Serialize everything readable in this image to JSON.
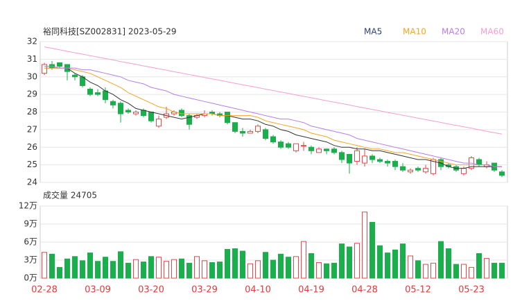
{
  "chart_data": [
    {
      "type": "candlestick",
      "title": "裕同科技[SZ002831] 2023-05-29",
      "up_color": "#e8474a",
      "down_color": "#1aaf4c",
      "ylim": [
        24,
        32
      ],
      "yticks": [
        24,
        25,
        26,
        27,
        28,
        29,
        30,
        31,
        32
      ],
      "grid": true,
      "open": [
        30.2,
        30.7,
        30.8,
        30.7,
        30.1,
        30.0,
        29.3,
        29.1,
        29.2,
        28.6,
        28.5,
        28.1,
        27.9,
        28.1,
        28.0,
        27.2,
        27.7,
        27.9,
        28.1,
        27.8,
        27.7,
        27.8,
        28.0,
        27.9,
        28.0,
        27.4,
        26.9,
        26.8,
        26.9,
        27.0,
        26.6,
        26.3,
        26.2,
        25.8,
        26.1,
        26.0,
        25.7,
        25.9,
        25.9,
        25.7,
        25.6,
        25.2,
        25.1,
        25.5,
        25.3,
        25.2,
        25.2,
        24.9,
        24.6,
        24.8,
        24.6,
        24.5,
        25.3,
        25.0,
        24.9,
        24.5,
        24.8,
        25.3,
        24.9,
        25.1,
        24.6
      ],
      "high": [
        30.8,
        30.9,
        30.8,
        30.7,
        30.2,
        30.1,
        29.4,
        29.3,
        29.4,
        28.7,
        28.6,
        28.2,
        28.1,
        28.2,
        28.0,
        27.8,
        28.3,
        28.1,
        28.2,
        27.9,
        27.9,
        28.1,
        28.1,
        28.0,
        28.0,
        27.4,
        27.1,
        27.0,
        27.3,
        27.1,
        26.7,
        26.4,
        26.3,
        26.2,
        26.3,
        26.1,
        26.0,
        25.9,
        26.0,
        25.8,
        25.6,
        26.0,
        25.9,
        25.6,
        25.4,
        25.3,
        25.3,
        25.1,
        24.8,
        24.9,
        25.0,
        25.4,
        25.4,
        25.1,
        25.0,
        24.9,
        25.5,
        25.4,
        25.2,
        25.1,
        24.7
      ],
      "low": [
        30.1,
        30.4,
        30.5,
        29.8,
        29.8,
        29.4,
        28.9,
        28.9,
        28.5,
        28.2,
        27.4,
        27.9,
        27.8,
        27.7,
        27.4,
        27.1,
        27.6,
        27.8,
        27.7,
        27.0,
        27.6,
        27.7,
        27.8,
        27.7,
        27.3,
        26.8,
        26.6,
        26.8,
        26.8,
        26.4,
        26.2,
        25.9,
        25.9,
        25.7,
        25.8,
        25.6,
        25.7,
        25.6,
        25.6,
        25.1,
        24.5,
        25.0,
        24.9,
        25.1,
        25.1,
        24.9,
        24.7,
        24.6,
        24.5,
        24.6,
        24.5,
        24.4,
        24.7,
        24.8,
        24.6,
        24.4,
        24.7,
        24.9,
        24.8,
        24.6,
        24.3
      ],
      "close": [
        30.7,
        30.5,
        30.6,
        30.3,
        30.0,
        29.5,
        29.0,
        29.0,
        28.7,
        28.4,
        27.9,
        28.0,
        28.0,
        27.8,
        27.5,
        27.6,
        27.9,
        28.0,
        27.8,
        27.3,
        27.8,
        27.9,
        27.9,
        27.8,
        27.4,
        26.9,
        26.8,
        26.9,
        27.2,
        26.5,
        26.3,
        26.0,
        26.0,
        26.2,
        26.1,
        25.8,
        25.9,
        25.8,
        25.7,
        25.3,
        25.1,
        25.8,
        25.5,
        25.3,
        25.2,
        25.1,
        24.9,
        24.7,
        24.7,
        24.7,
        24.8,
        25.3,
        24.9,
        24.9,
        24.7,
        24.8,
        25.4,
        25.0,
        25.0,
        24.7,
        24.4
      ],
      "series": [
        {
          "name": "MA5",
          "color": "#333333",
          "values": [
            30.5,
            30.5,
            30.5,
            30.5,
            30.2,
            30.0,
            29.7,
            29.5,
            29.2,
            29.0,
            28.7,
            28.5,
            28.2,
            28.1,
            28.0,
            27.9,
            27.8,
            27.7,
            27.6,
            27.7,
            27.8,
            27.9,
            27.9,
            27.8,
            27.8,
            27.7,
            27.6,
            27.6,
            27.5,
            27.3,
            27.2,
            27.0,
            26.9,
            26.7,
            26.6,
            26.5,
            26.4,
            26.3,
            26.1,
            26.0,
            26.0,
            25.9,
            25.9,
            25.8,
            25.8,
            25.7,
            25.6,
            25.5,
            25.4,
            25.3,
            25.3,
            25.2,
            25.1,
            24.9,
            24.8,
            24.8,
            24.9,
            24.9,
            24.9,
            24.9,
            24.9
          ]
        },
        {
          "name": "MA10",
          "color": "#f5a623",
          "values": [
            30.5,
            30.5,
            30.5,
            30.5,
            30.4,
            30.3,
            30.2,
            30.0,
            29.8,
            29.6,
            29.4,
            29.1,
            28.9,
            28.7,
            28.5,
            28.3,
            28.2,
            28.0,
            27.9,
            27.9,
            27.9,
            27.9,
            27.9,
            27.8,
            27.8,
            27.8,
            27.8,
            27.8,
            27.7,
            27.5,
            27.4,
            27.3,
            27.2,
            27.1,
            27.0,
            26.8,
            26.7,
            26.6,
            26.4,
            26.3,
            26.2,
            26.1,
            26.0,
            25.9,
            25.9,
            25.8,
            25.7,
            25.7,
            25.6,
            25.5,
            25.4,
            25.3,
            25.2,
            25.1,
            25.0,
            25.0,
            25.0,
            25.0,
            25.0,
            24.9,
            24.9
          ]
        },
        {
          "name": "MA20",
          "color": "#b57ee6",
          "values": [
            30.6,
            30.6,
            30.5,
            30.5,
            30.5,
            30.4,
            30.4,
            30.3,
            30.2,
            30.1,
            30.0,
            29.8,
            29.7,
            29.6,
            29.4,
            29.3,
            29.2,
            29.0,
            28.9,
            28.8,
            28.7,
            28.6,
            28.5,
            28.4,
            28.3,
            28.2,
            28.1,
            28.0,
            27.9,
            27.8,
            27.7,
            27.6,
            27.6,
            27.5,
            27.4,
            27.2,
            27.1,
            27.0,
            26.9,
            26.8,
            26.7,
            26.5,
            26.4,
            26.3,
            26.2,
            26.1,
            26.0,
            25.9,
            25.8,
            25.7,
            25.6,
            25.5,
            25.4,
            25.3,
            25.2,
            25.1,
            25.1,
            25.0,
            25.0,
            24.9,
            24.9
          ]
        },
        {
          "name": "MA60",
          "color": "#f59fcf",
          "values": [
            31.7,
            31.62,
            31.54,
            31.45,
            31.37,
            31.29,
            31.2,
            31.12,
            31.04,
            30.96,
            30.87,
            30.79,
            30.71,
            30.62,
            30.54,
            30.46,
            30.38,
            30.29,
            30.21,
            30.13,
            30.05,
            29.96,
            29.88,
            29.8,
            29.72,
            29.63,
            29.55,
            29.47,
            29.39,
            29.3,
            29.22,
            29.14,
            29.06,
            28.97,
            28.89,
            28.81,
            28.73,
            28.64,
            28.56,
            28.48,
            28.4,
            28.31,
            28.23,
            28.15,
            28.07,
            27.98,
            27.9,
            27.82,
            27.74,
            27.65,
            27.57,
            27.49,
            27.41,
            27.32,
            27.24,
            27.16,
            27.08,
            26.99,
            26.91,
            26.83,
            26.75
          ]
        }
      ]
    },
    {
      "type": "bar",
      "title": "成交量 24705",
      "tick_color": "#e03c3c",
      "categories": [
        "02-28",
        null,
        null,
        null,
        null,
        null,
        null,
        "03-09",
        null,
        null,
        null,
        null,
        null,
        null,
        "03-20",
        null,
        null,
        null,
        null,
        null,
        null,
        "03-29",
        null,
        null,
        null,
        null,
        null,
        null,
        "04-10",
        null,
        null,
        null,
        null,
        null,
        null,
        "04-19",
        null,
        null,
        null,
        null,
        null,
        null,
        "04-28",
        null,
        null,
        null,
        null,
        null,
        null,
        "05-12",
        null,
        null,
        null,
        null,
        null,
        null,
        "05-23",
        null,
        null,
        null,
        null
      ],
      "values": [
        4.3,
        4.0,
        1.8,
        3.2,
        3.6,
        2.9,
        4.2,
        2.8,
        3.5,
        2.8,
        4.4,
        2.5,
        3.1,
        2.7,
        3.6,
        3.5,
        2.8,
        3.1,
        3.2,
        2.5,
        3.6,
        2.9,
        2.6,
        2.7,
        4.8,
        4.9,
        4.5,
        2.4,
        2.9,
        4.3,
        3.0,
        4.0,
        3.5,
        3.6,
        6.1,
        4.1,
        2.6,
        2.4,
        2.5,
        5.7,
        5.2,
        5.8,
        11.0,
        9.3,
        5.4,
        4.2,
        4.7,
        5.7,
        3.7,
        2.9,
        2.3,
        2.5,
        6.1,
        4.9,
        2.3,
        2.3,
        1.8,
        4.1,
        3.3,
        2.5,
        2.5
      ],
      "ylim": [
        0,
        12
      ],
      "yticks": [
        {
          "value": 0,
          "label": "0万"
        },
        {
          "value": 3,
          "label": "3万"
        },
        {
          "value": 6,
          "label": "6万"
        },
        {
          "value": 9,
          "label": "9万"
        },
        {
          "value": 12,
          "label": "12万"
        }
      ],
      "grid": true
    }
  ]
}
